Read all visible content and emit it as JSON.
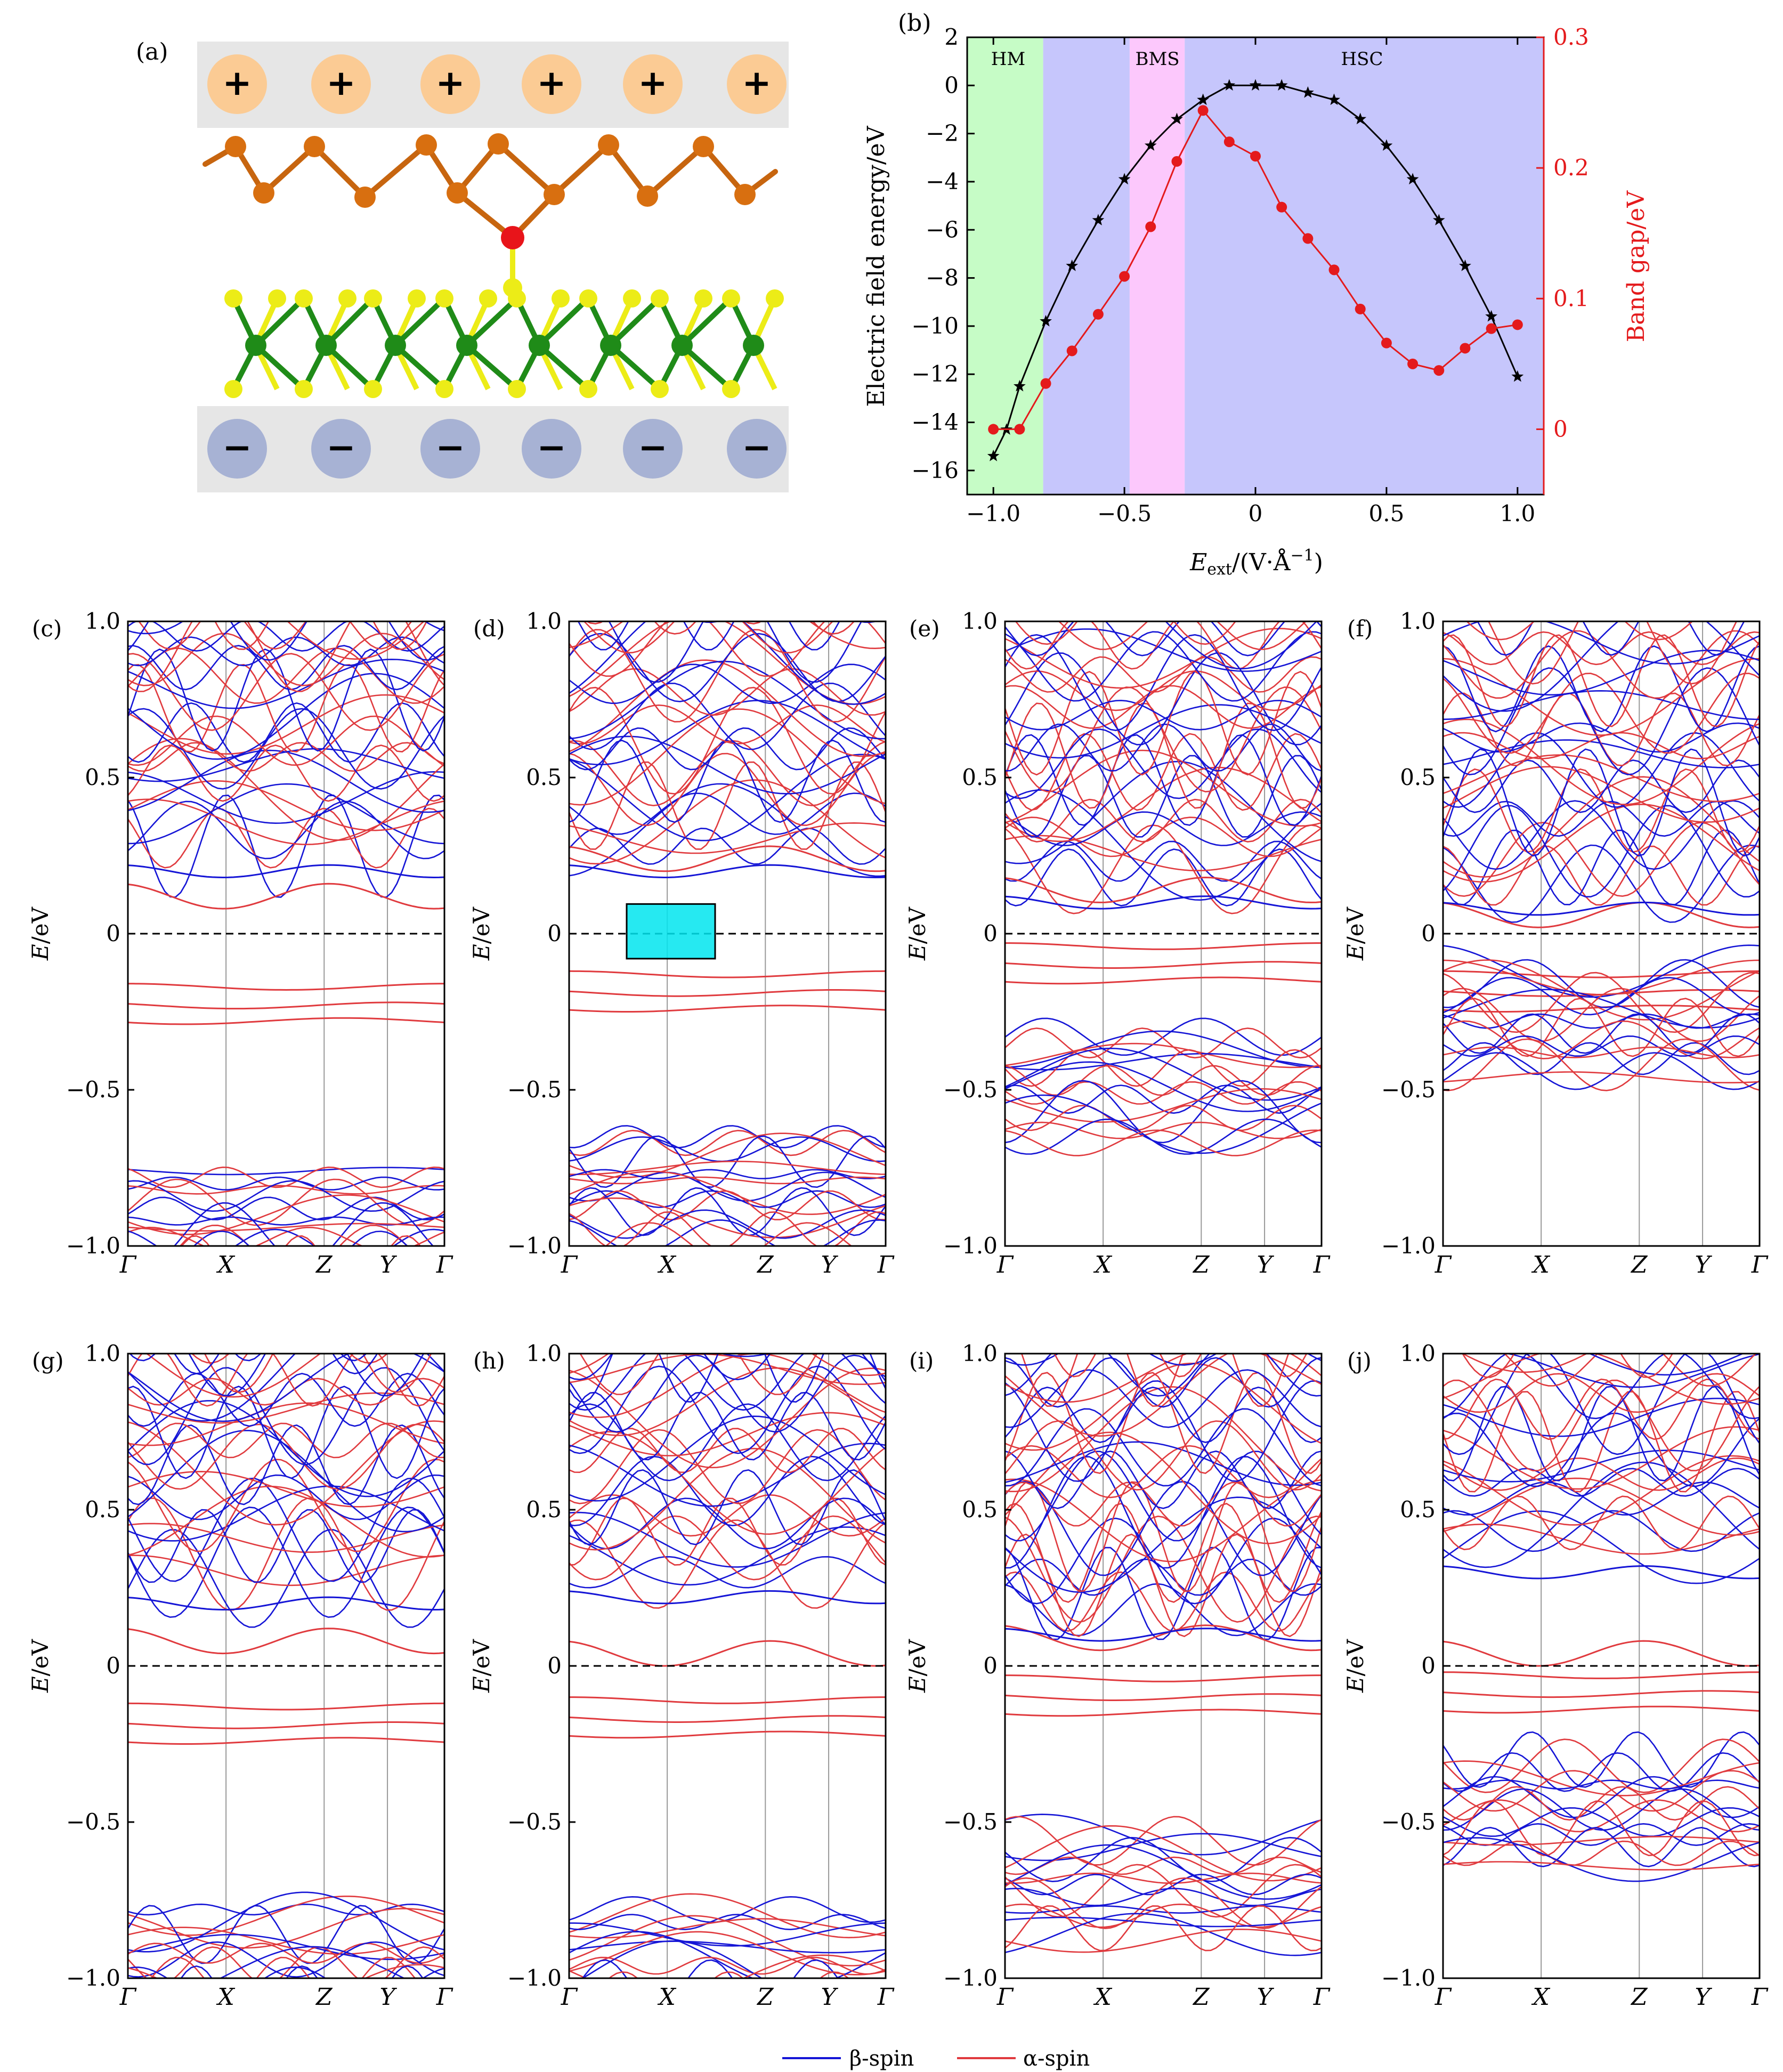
{
  "panel_a": {
    "label": "(a)",
    "plus_sign": "+",
    "minus_sign": "−",
    "colors": {
      "plate": "#e6e6e6",
      "plus_disc": "#fbcb94",
      "minus_disc": "#a7b2d4",
      "top_atom": "#d86f10",
      "top_bond": "#c7650f",
      "mid_atom": "#e8141a",
      "yellow_atom": "#ecec17",
      "green_atom": "#1f8b18"
    }
  },
  "panel_b": {
    "label": "(b)",
    "regions": [
      "HM",
      "BMS",
      "HSC"
    ],
    "region_colors": {
      "HM": "#c6fcc6",
      "BMS": "#fcc8fc",
      "HSC": "#c6c6fc"
    },
    "axis_colors": {
      "left": "#000000",
      "right": "#e41a1c"
    }
  },
  "chart_data": [
    {
      "type": "line",
      "panel": "(b)",
      "xlabel_main": "E",
      "xlabel_sub": "ext",
      "xlabel_unit": "/(V·Å",
      "xlabel_exp": "−1",
      "xlabel_close": ")",
      "ylabel_left": "Electric field energy/eV",
      "ylabel_right": "Band gap/eV",
      "xlim": [
        -1.1,
        1.1
      ],
      "ylim_left": [
        -17,
        2
      ],
      "ylim_right": [
        -0.05,
        0.3
      ],
      "xticks": [
        -1.0,
        -0.5,
        0.0,
        0.5,
        1.0
      ],
      "xtick_labels": [
        "−1.0",
        "−0.5",
        "0",
        "0.5",
        "1.0"
      ],
      "yticks_left": [
        2,
        0,
        -2,
        -4,
        -6,
        -8,
        -10,
        -12,
        -14,
        -16
      ],
      "ytick_labels_left": [
        "2",
        "0",
        "−2",
        "−4",
        "−6",
        "−8",
        "−10",
        "−12",
        "−14",
        "−16"
      ],
      "yticks_right": [
        0,
        0.1,
        0.2,
        0.3
      ],
      "ytick_labels_right": [
        "0",
        "0.1",
        "0.2",
        "0.3"
      ],
      "region_bounds": {
        "HM": [
          -1.1,
          -0.81
        ],
        "HSC_1": [
          -0.81,
          -0.48
        ],
        "BMS": [
          -0.48,
          -0.27
        ],
        "HSC": [
          -0.27,
          1.1
        ]
      },
      "series": [
        {
          "axis": "left",
          "marker": "star",
          "x": [
            -1.0,
            -0.95,
            -0.9,
            -0.8,
            -0.7,
            -0.6,
            -0.5,
            -0.4,
            -0.3,
            -0.2,
            -0.1,
            0.0,
            0.1,
            0.2,
            0.3,
            0.4,
            0.5,
            0.6,
            0.7,
            0.8,
            0.9,
            1.0
          ],
          "y": [
            -15.4,
            -14.3,
            -12.5,
            -9.8,
            -7.5,
            -5.6,
            -3.9,
            -2.5,
            -1.4,
            -0.6,
            0.0,
            0.0,
            0.0,
            -0.3,
            -0.6,
            -1.4,
            -2.5,
            -3.9,
            -5.6,
            -7.5,
            -9.6,
            -12.1
          ]
        },
        {
          "axis": "right",
          "marker": "circle",
          "x": [
            -1.0,
            -0.9,
            -0.8,
            -0.7,
            -0.6,
            -0.5,
            -0.4,
            -0.3,
            -0.2,
            -0.1,
            0.0,
            0.1,
            0.2,
            0.3,
            0.4,
            0.5,
            0.6,
            0.7,
            0.8,
            0.9,
            1.0
          ],
          "y": [
            0.0,
            0.0,
            0.035,
            0.06,
            0.088,
            0.117,
            0.155,
            0.205,
            0.244,
            0.22,
            0.209,
            0.17,
            0.146,
            0.122,
            0.092,
            0.066,
            0.05,
            0.045,
            0.062,
            0.077,
            0.08
          ]
        }
      ]
    },
    {
      "type": "line",
      "panel": "(c)",
      "ylabel_main": "E",
      "ylabel_unit": "/eV",
      "ylim": [
        -1.0,
        1.0
      ],
      "yticks": [
        1.0,
        0.5,
        0,
        -0.5,
        -1.0
      ],
      "ytick_labels": [
        "1.0",
        "0.5",
        "0",
        "−0.5",
        "−1.0"
      ],
      "kpoints": [
        "Γ",
        "X",
        "Z",
        "Y",
        "Γ"
      ],
      "kpos": [
        0,
        0.31,
        0.62,
        0.82,
        1.0
      ],
      "cbm_alpha": 0.08,
      "cbm_beta": 0.2,
      "vbm_alpha": -0.16,
      "vbm_beta": -0.76
    },
    {
      "type": "line",
      "panel": "(d)",
      "ylabel_main": "E",
      "ylabel_unit": "/eV",
      "ylim": [
        -1.0,
        1.0
      ],
      "yticks": [
        1.0,
        0.5,
        0,
        -0.5,
        -1.0
      ],
      "ytick_labels": [
        "1.0",
        "0.5",
        "0",
        "−0.5",
        "−1.0"
      ],
      "kpoints": [
        "Γ",
        "X",
        "Z",
        "Y",
        "Γ"
      ],
      "kpos": [
        0,
        0.31,
        0.62,
        0.82,
        1.0
      ],
      "cbm_alpha": 0.2,
      "cbm_beta": 0.2,
      "vbm_alpha": -0.12,
      "vbm_beta": -0.65,
      "inset_color": "#00e5ee"
    },
    {
      "type": "line",
      "panel": "(e)",
      "ylabel_main": "E",
      "ylabel_unit": "/eV",
      "ylim": [
        -1.0,
        1.0
      ],
      "yticks": [
        1.0,
        0.5,
        0,
        -0.5,
        -1.0
      ],
      "ytick_labels": [
        "1.0",
        "0.5",
        "0",
        "−0.5",
        "−1.0"
      ],
      "kpoints": [
        "Γ",
        "X",
        "Z",
        "Y",
        "Γ"
      ],
      "kpos": [
        0,
        0.31,
        0.62,
        0.82,
        1.0
      ],
      "cbm_alpha": 0.1,
      "cbm_beta": 0.1,
      "vbm_alpha": -0.03,
      "vbm_beta": -0.33
    },
    {
      "type": "line",
      "panel": "(f)",
      "ylabel_main": "E",
      "ylabel_unit": "/eV",
      "ylim": [
        -1.0,
        1.0
      ],
      "yticks": [
        1.0,
        0.5,
        0,
        -0.5,
        -1.0
      ],
      "ytick_labels": [
        "1.0",
        "0.5",
        "0",
        "−0.5",
        "−1.0"
      ],
      "kpoints": [
        "Γ",
        "X",
        "Z",
        "Y",
        "Γ"
      ],
      "kpos": [
        0,
        0.31,
        0.62,
        0.82,
        1.0
      ],
      "cbm_alpha": 0.02,
      "cbm_beta": 0.08,
      "vbm_alpha": -0.12,
      "vbm_beta": -0.12
    },
    {
      "type": "line",
      "panel": "(g)",
      "ylabel_main": "E",
      "ylabel_unit": "/eV",
      "ylim": [
        -1.0,
        1.0
      ],
      "yticks": [
        1.0,
        0.5,
        0,
        -0.5,
        -1.0
      ],
      "ytick_labels": [
        "1.0",
        "0.5",
        "0",
        "−0.5",
        "−1.0"
      ],
      "kpoints": [
        "Γ",
        "X",
        "Z",
        "Y",
        "Γ"
      ],
      "kpos": [
        0,
        0.31,
        0.62,
        0.82,
        1.0
      ],
      "cbm_alpha": 0.04,
      "cbm_beta": 0.2,
      "vbm_alpha": -0.12,
      "vbm_beta": -0.78
    },
    {
      "type": "line",
      "panel": "(h)",
      "ylabel_main": "E",
      "ylabel_unit": "/eV",
      "ylim": [
        -1.0,
        1.0
      ],
      "yticks": [
        1.0,
        0.5,
        0,
        -0.5,
        -1.0
      ],
      "ytick_labels": [
        "1.0",
        "0.5",
        "0",
        "−0.5",
        "−1.0"
      ],
      "kpoints": [
        "Γ",
        "X",
        "Z",
        "Y",
        "Γ"
      ],
      "kpos": [
        0,
        0.31,
        0.62,
        0.82,
        1.0
      ],
      "cbm_alpha": 0.0,
      "cbm_beta": 0.22,
      "vbm_alpha": -0.1,
      "vbm_beta": -0.78
    },
    {
      "type": "line",
      "panel": "(i)",
      "ylabel_main": "E",
      "ylabel_unit": "/eV",
      "ylim": [
        -1.0,
        1.0
      ],
      "yticks": [
        1.0,
        0.5,
        0,
        -0.5,
        -1.0
      ],
      "ytick_labels": [
        "1.0",
        "0.5",
        "0",
        "−0.5",
        "−1.0"
      ],
      "kpoints": [
        "Γ",
        "X",
        "Z",
        "Y",
        "Γ"
      ],
      "kpos": [
        0,
        0.31,
        0.62,
        0.82,
        1.0
      ],
      "cbm_alpha": 0.05,
      "cbm_beta": 0.1,
      "vbm_alpha": -0.03,
      "vbm_beta": -0.54
    },
    {
      "type": "line",
      "panel": "(j)",
      "ylabel_main": "E",
      "ylabel_unit": "/eV",
      "ylim": [
        -1.0,
        1.0
      ],
      "yticks": [
        1.0,
        0.5,
        0,
        -0.5,
        -1.0
      ],
      "ytick_labels": [
        "1.0",
        "0.5",
        "0",
        "−0.5",
        "−1.0"
      ],
      "kpoints": [
        "Γ",
        "X",
        "Z",
        "Y",
        "Γ"
      ],
      "kpos": [
        0,
        0.31,
        0.62,
        0.82,
        1.0
      ],
      "cbm_alpha": 0.0,
      "cbm_beta": 0.3,
      "vbm_alpha": -0.02,
      "vbm_beta": -0.3
    }
  ],
  "legend": {
    "items": [
      {
        "label": "β-spin",
        "color": "#1515d6"
      },
      {
        "label": "α-spin",
        "color": "#e03a3e"
      }
    ]
  }
}
